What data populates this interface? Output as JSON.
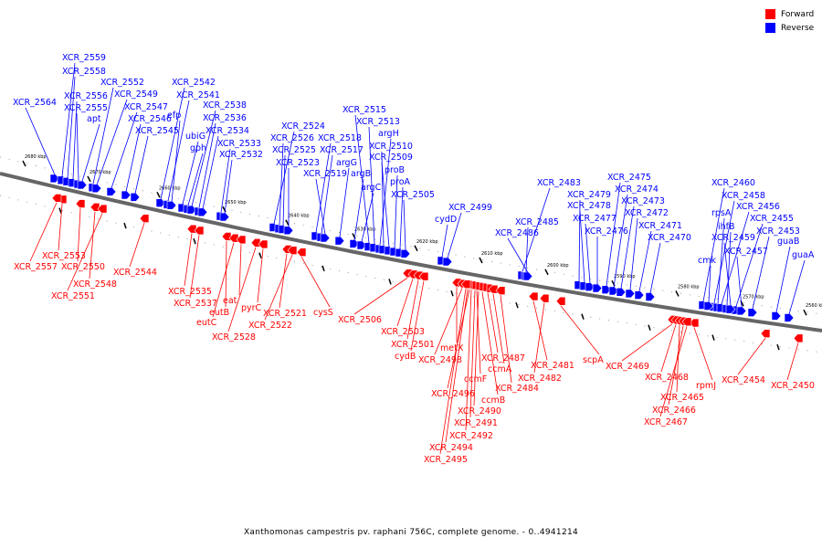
{
  "caption": "Xanthomonas campestris pv. raphani 756C, complete genome. - 0..4941214",
  "legend": [
    {
      "label": "Forward",
      "color": "#ff0000"
    },
    {
      "label": "Reverse",
      "color": "#0000ff"
    }
  ],
  "colors": {
    "forward": "#ff0000",
    "reverse": "#0000ff",
    "backbone": "#666666"
  },
  "scale_ticks": [
    "2680 kbp",
    "2670 kbp",
    "2660 kbp",
    "2650 kbp",
    "2640 kbp",
    "2630 kbp",
    "2620 kbp",
    "2610 kbp",
    "2600 kbp",
    "2590 kbp",
    "2580 kbp",
    "2570 kbp",
    "2560 kbp"
  ],
  "reverse_genes": [
    {
      "label": "XCR_2564"
    },
    {
      "label": "XCR_2559"
    },
    {
      "label": "XCR_2558"
    },
    {
      "label": "XCR_2556"
    },
    {
      "label": "XCR_2555"
    },
    {
      "label": "apt"
    },
    {
      "label": "XCR_2552"
    },
    {
      "label": "XCR_2549"
    },
    {
      "label": "XCR_2547"
    },
    {
      "label": "XCR_2546"
    },
    {
      "label": "XCR_2545"
    },
    {
      "label": "XCR_2542"
    },
    {
      "label": "XCR_2541"
    },
    {
      "label": "efp"
    },
    {
      "label": "ubiG"
    },
    {
      "label": "gph"
    },
    {
      "label": "XCR_2538"
    },
    {
      "label": "XCR_2536"
    },
    {
      "label": "XCR_2534"
    },
    {
      "label": "XCR_2533"
    },
    {
      "label": "XCR_2532"
    },
    {
      "label": "XCR_2524"
    },
    {
      "label": "XCR_2526"
    },
    {
      "label": "XCR_2525"
    },
    {
      "label": "XCR_2523"
    },
    {
      "label": "XCR_2518"
    },
    {
      "label": "XCR_2517"
    },
    {
      "label": "XCR_2519"
    },
    {
      "label": "argG"
    },
    {
      "label": "argB"
    },
    {
      "label": "argC"
    },
    {
      "label": "XCR_2515"
    },
    {
      "label": "XCR_2513"
    },
    {
      "label": "argH"
    },
    {
      "label": "XCR_2510"
    },
    {
      "label": "XCR_2509"
    },
    {
      "label": "proB"
    },
    {
      "label": "proA"
    },
    {
      "label": "XCR_2505"
    },
    {
      "label": "cydD"
    },
    {
      "label": "XCR_2499"
    },
    {
      "label": "XCR_2483"
    },
    {
      "label": "XCR_2485"
    },
    {
      "label": "XCR_2486"
    },
    {
      "label": "XCR_2479"
    },
    {
      "label": "XCR_2478"
    },
    {
      "label": "XCR_2477"
    },
    {
      "label": "XCR_2476"
    },
    {
      "label": "XCR_2475"
    },
    {
      "label": "XCR_2474"
    },
    {
      "label": "XCR_2473"
    },
    {
      "label": "XCR_2472"
    },
    {
      "label": "XCR_2471"
    },
    {
      "label": "XCR_2470"
    },
    {
      "label": "XCR_2460"
    },
    {
      "label": "XCR_2458"
    },
    {
      "label": "rpsA"
    },
    {
      "label": "XCR_2456"
    },
    {
      "label": "ihfB"
    },
    {
      "label": "XCR_2455"
    },
    {
      "label": "XCR_2459"
    },
    {
      "label": "XCR_2457"
    },
    {
      "label": "XCR_2453"
    },
    {
      "label": "guaB"
    },
    {
      "label": "cmk"
    },
    {
      "label": "guaA"
    }
  ],
  "forward_genes": [
    {
      "label": "XCR_2553"
    },
    {
      "label": "XCR_2557"
    },
    {
      "label": "XCR_2550"
    },
    {
      "label": "XCR_2548"
    },
    {
      "label": "XCR_2551"
    },
    {
      "label": "XCR_2544"
    },
    {
      "label": "XCR_2535"
    },
    {
      "label": "XCR_2537"
    },
    {
      "label": "eutB"
    },
    {
      "label": "eutC"
    },
    {
      "label": "eat"
    },
    {
      "label": "XCR_2528"
    },
    {
      "label": "pyrC"
    },
    {
      "label": "XCR_2521"
    },
    {
      "label": "XCR_2522"
    },
    {
      "label": "cysS"
    },
    {
      "label": "XCR_2506"
    },
    {
      "label": "XCR_2503"
    },
    {
      "label": "XCR_2501"
    },
    {
      "label": "cydB"
    },
    {
      "label": "metX"
    },
    {
      "label": "XCR_2498"
    },
    {
      "label": "XCR_2487"
    },
    {
      "label": "ccmA"
    },
    {
      "label": "ccmF"
    },
    {
      "label": "XCR_2484"
    },
    {
      "label": "XCR_2496"
    },
    {
      "label": "ccmB"
    },
    {
      "label": "XCR_2490"
    },
    {
      "label": "XCR_2491"
    },
    {
      "label": "XCR_2492"
    },
    {
      "label": "XCR_2494"
    },
    {
      "label": "XCR_2495"
    },
    {
      "label": "XCR_2481"
    },
    {
      "label": "XCR_2482"
    },
    {
      "label": "scpA"
    },
    {
      "label": "XCR_2469"
    },
    {
      "label": "XCR_2468"
    },
    {
      "label": "rpmJ"
    },
    {
      "label": "XCR_2465"
    },
    {
      "label": "XCR_2466"
    },
    {
      "label": "XCR_2467"
    },
    {
      "label": "XCR_2454"
    },
    {
      "label": "XCR_2450"
    }
  ]
}
